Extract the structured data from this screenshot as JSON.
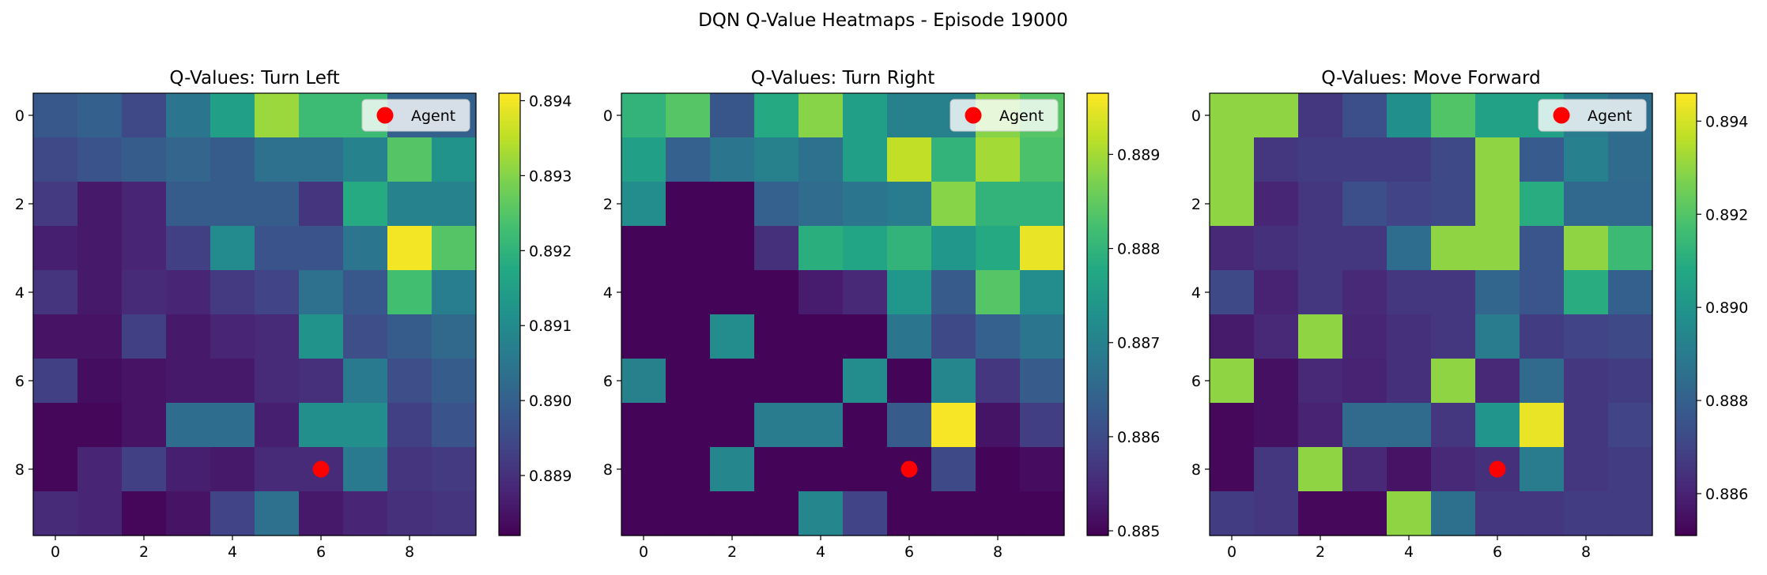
{
  "figure": {
    "suptitle": "DQN Q-Value Heatmaps - Episode 19000"
  },
  "chart_data": [
    {
      "type": "heatmap",
      "title": "Q-Values: Turn Left",
      "grid_size": [
        10,
        10
      ],
      "x_ticks": [
        0,
        2,
        4,
        6,
        8
      ],
      "y_ticks": [
        0,
        2,
        4,
        6,
        8
      ],
      "colormap": "viridis",
      "color_range": [
        0.8882,
        0.8941
      ],
      "colorbar_ticks": [
        "0.889",
        "0.890",
        "0.891",
        "0.892",
        "0.893",
        "0.894"
      ],
      "colorbar_tick_values": [
        0.889,
        0.89,
        0.891,
        0.892,
        0.893,
        0.894
      ],
      "agent": {
        "x": 6,
        "y": 8,
        "label": "Agent",
        "color": "#ff0000"
      },
      "legend_position": "upper right",
      "values": [
        [
          0.8898,
          0.89,
          0.8895,
          0.8905,
          0.8915,
          0.8932,
          0.8922,
          0.8922,
          0.89,
          0.89
        ],
        [
          0.8895,
          0.8897,
          0.8899,
          0.8901,
          0.8899,
          0.8904,
          0.8904,
          0.8908,
          0.8925,
          0.8912
        ],
        [
          0.8892,
          0.8886,
          0.8888,
          0.8899,
          0.8899,
          0.8899,
          0.8891,
          0.8918,
          0.8908,
          0.8908
        ],
        [
          0.8887,
          0.8886,
          0.8888,
          0.8893,
          0.891,
          0.8897,
          0.8897,
          0.8905,
          0.894,
          0.8925
        ],
        [
          0.8891,
          0.8886,
          0.8889,
          0.8888,
          0.8892,
          0.8894,
          0.8904,
          0.8898,
          0.8923,
          0.8907
        ],
        [
          0.8885,
          0.8885,
          0.8893,
          0.8886,
          0.8888,
          0.8889,
          0.8912,
          0.8896,
          0.8899,
          0.8902
        ],
        [
          0.8893,
          0.8884,
          0.8885,
          0.8886,
          0.8886,
          0.8889,
          0.889,
          0.8906,
          0.8896,
          0.8899
        ],
        [
          0.8883,
          0.8883,
          0.8885,
          0.8903,
          0.8903,
          0.8887,
          0.8911,
          0.8911,
          0.8893,
          0.8897
        ],
        [
          0.8883,
          0.8888,
          0.8893,
          0.8887,
          0.8886,
          0.8889,
          0.8889,
          0.8906,
          0.8891,
          0.8892
        ],
        [
          0.8889,
          0.8888,
          0.8883,
          0.8885,
          0.8894,
          0.8904,
          0.8886,
          0.8888,
          0.889,
          0.8891
        ]
      ]
    },
    {
      "type": "heatmap",
      "title": "Q-Values: Turn Right",
      "grid_size": [
        10,
        10
      ],
      "x_ticks": [
        0,
        2,
        4,
        6,
        8
      ],
      "y_ticks": [
        0,
        2,
        4,
        6,
        8
      ],
      "colormap": "viridis",
      "color_range": [
        0.88495,
        0.88965
      ],
      "colorbar_ticks": [
        "0.885",
        "0.886",
        "0.887",
        "0.888",
        "0.889"
      ],
      "colorbar_tick_values": [
        0.885,
        0.886,
        0.887,
        0.888,
        0.889
      ],
      "agent": {
        "x": 6,
        "y": 8,
        "label": "Agent",
        "color": "#ff0000"
      },
      "legend_position": "upper right",
      "values": [
        [
          0.888,
          0.8884,
          0.8862,
          0.8878,
          0.8888,
          0.8876,
          0.887,
          0.887,
          0.8888,
          0.8884
        ],
        [
          0.8876,
          0.8864,
          0.8868,
          0.887,
          0.8867,
          0.8876,
          0.8892,
          0.888,
          0.889,
          0.8883
        ],
        [
          0.8872,
          0.885,
          0.885,
          0.8864,
          0.8866,
          0.8868,
          0.8869,
          0.8888,
          0.888,
          0.888
        ],
        [
          0.885,
          0.885,
          0.885,
          0.8856,
          0.8879,
          0.8877,
          0.888,
          0.8874,
          0.8878,
          0.8895
        ],
        [
          0.885,
          0.885,
          0.885,
          0.885,
          0.8853,
          0.8855,
          0.8874,
          0.8863,
          0.8884,
          0.8872
        ],
        [
          0.885,
          0.885,
          0.8872,
          0.885,
          0.885,
          0.885,
          0.8868,
          0.886,
          0.8864,
          0.8868
        ],
        [
          0.887,
          0.885,
          0.885,
          0.885,
          0.885,
          0.8872,
          0.885,
          0.8871,
          0.8857,
          0.8863
        ],
        [
          0.885,
          0.885,
          0.885,
          0.8869,
          0.8869,
          0.885,
          0.8863,
          0.8896,
          0.8852,
          0.8858
        ],
        [
          0.885,
          0.885,
          0.8871,
          0.885,
          0.885,
          0.885,
          0.885,
          0.886,
          0.885,
          0.8851
        ],
        [
          0.885,
          0.885,
          0.885,
          0.885,
          0.8871,
          0.8859,
          0.885,
          0.885,
          0.885,
          0.885
        ]
      ]
    },
    {
      "type": "heatmap",
      "title": "Q-Values: Move Forward",
      "grid_size": [
        10,
        10
      ],
      "x_ticks": [
        0,
        2,
        4,
        6,
        8
      ],
      "y_ticks": [
        0,
        2,
        4,
        6,
        8
      ],
      "colormap": "viridis",
      "color_range": [
        0.8851,
        0.8946
      ],
      "colorbar_ticks": [
        "0.886",
        "0.888",
        "0.890",
        "0.892",
        "0.894"
      ],
      "colorbar_tick_values": [
        0.886,
        0.888,
        0.89,
        0.892,
        0.894
      ],
      "agent": {
        "x": 6,
        "y": 8,
        "label": "Agent",
        "color": "#ff0000"
      },
      "legend_position": "upper right",
      "values": [
        [
          0.893,
          0.893,
          0.8866,
          0.8874,
          0.8898,
          0.892,
          0.8905,
          0.8905,
          0.889,
          0.8885
        ],
        [
          0.893,
          0.8866,
          0.8868,
          0.8868,
          0.8868,
          0.8872,
          0.893,
          0.8878,
          0.8892,
          0.8884
        ],
        [
          0.893,
          0.8861,
          0.8866,
          0.8874,
          0.887,
          0.8872,
          0.893,
          0.891,
          0.8883,
          0.8883
        ],
        [
          0.8862,
          0.8864,
          0.8866,
          0.8866,
          0.8885,
          0.893,
          0.893,
          0.8876,
          0.893,
          0.8915
        ],
        [
          0.8872,
          0.886,
          0.8866,
          0.8862,
          0.8866,
          0.8866,
          0.8882,
          0.8876,
          0.891,
          0.888
        ],
        [
          0.8858,
          0.8862,
          0.893,
          0.8861,
          0.8864,
          0.8866,
          0.889,
          0.8868,
          0.887,
          0.8872
        ],
        [
          0.893,
          0.8855,
          0.8862,
          0.886,
          0.8864,
          0.893,
          0.8862,
          0.8884,
          0.8866,
          0.8868
        ],
        [
          0.8853,
          0.8855,
          0.886,
          0.8884,
          0.8884,
          0.8866,
          0.89,
          0.8943,
          0.8866,
          0.887
        ],
        [
          0.8853,
          0.8866,
          0.893,
          0.8862,
          0.8856,
          0.8862,
          0.8864,
          0.889,
          0.8866,
          0.8868
        ],
        [
          0.8868,
          0.8866,
          0.8853,
          0.8853,
          0.893,
          0.8886,
          0.8866,
          0.8866,
          0.8868,
          0.8868
        ]
      ]
    }
  ]
}
